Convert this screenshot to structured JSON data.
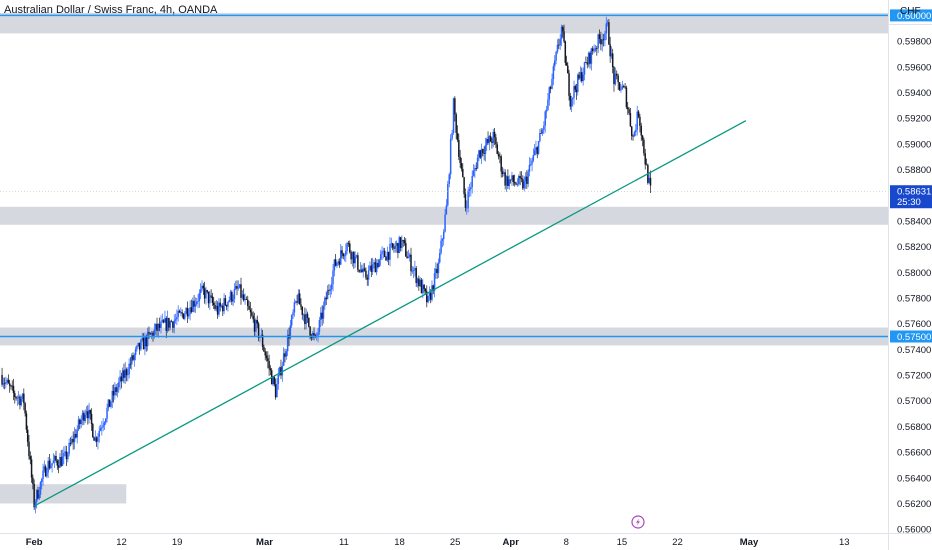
{
  "header": {
    "title": "Australian Dollar / Swiss Franc, 4h, OANDA",
    "currency": "CHF"
  },
  "chart_data": {
    "type": "candlestick",
    "symbol": "AUDCHF",
    "timeframe": "4h",
    "ylim": [
      0.5597,
      0.6012
    ],
    "y_ticks": [
      "0.59800",
      "0.59600",
      "0.59400",
      "0.59200",
      "0.59000",
      "0.58800",
      "0.58400",
      "0.58200",
      "0.58000",
      "0.57800",
      "0.57600",
      "0.57400",
      "0.57200",
      "0.57000",
      "0.56800",
      "0.56600",
      "0.56400",
      "0.56200",
      "0.56000"
    ],
    "x_ticks": [
      {
        "label": "Feb",
        "bold": true,
        "day": 0
      },
      {
        "label": "12",
        "bold": false,
        "day": 11
      },
      {
        "label": "19",
        "bold": false,
        "day": 18
      },
      {
        "label": "Mar",
        "bold": true,
        "day": 29
      },
      {
        "label": "11",
        "bold": false,
        "day": 39
      },
      {
        "label": "18",
        "bold": false,
        "day": 46
      },
      {
        "label": "25",
        "bold": false,
        "day": 53
      },
      {
        "label": "Apr",
        "bold": true,
        "day": 60
      },
      {
        "label": "8",
        "bold": false,
        "day": 67
      },
      {
        "label": "15",
        "bold": false,
        "day": 74
      },
      {
        "label": "22",
        "bold": false,
        "day": 81
      },
      {
        "label": "May",
        "bold": true,
        "day": 90
      },
      {
        "label": "13",
        "bold": false,
        "day": 102
      }
    ],
    "x_domain_days": [
      -4.3,
      107.5
    ],
    "key_levels": [
      {
        "price": 0.6,
        "label": "0.60000",
        "zone": [
          0.5986,
          0.6002
        ]
      },
      {
        "price": 0.575,
        "label": "0.57500",
        "zone": [
          0.5743,
          0.5757
        ]
      }
    ],
    "zones": [
      {
        "y1": 0.5837,
        "y2": 0.5851,
        "extend": true
      },
      {
        "y1": 0.562,
        "y2": 0.5635,
        "x_end_day": 11.6
      }
    ],
    "trendline": {
      "p1": [
        0.0,
        0.5618
      ],
      "p2": [
        89.6,
        0.5918
      ]
    },
    "current_price": {
      "label": "0.58631",
      "countdown": "25:30",
      "value": 0.58631
    },
    "anchors": [
      [
        -4.2,
        0.572
      ],
      [
        -2.6,
        0.5705
      ],
      [
        -1.3,
        0.57
      ],
      [
        0.0,
        0.562
      ],
      [
        1.6,
        0.565
      ],
      [
        3.9,
        0.5655
      ],
      [
        6.6,
        0.5695
      ],
      [
        7.7,
        0.567
      ],
      [
        10.0,
        0.5705
      ],
      [
        13.1,
        0.574
      ],
      [
        15.3,
        0.5755
      ],
      [
        18.3,
        0.5765
      ],
      [
        21.3,
        0.5785
      ],
      [
        23.1,
        0.577
      ],
      [
        25.7,
        0.5787
      ],
      [
        28.6,
        0.5748
      ],
      [
        30.4,
        0.5707
      ],
      [
        33.1,
        0.578
      ],
      [
        35.4,
        0.5746
      ],
      [
        37.8,
        0.5805
      ],
      [
        39.4,
        0.5822
      ],
      [
        41.6,
        0.5796
      ],
      [
        43.8,
        0.5812
      ],
      [
        46.3,
        0.5823
      ],
      [
        48.1,
        0.5797
      ],
      [
        49.6,
        0.5776
      ],
      [
        50.9,
        0.5805
      ],
      [
        51.9,
        0.585
      ],
      [
        52.8,
        0.593
      ],
      [
        54.3,
        0.5852
      ],
      [
        56.0,
        0.5893
      ],
      [
        57.8,
        0.5905
      ],
      [
        59.3,
        0.5872
      ],
      [
        61.7,
        0.5868
      ],
      [
        64.0,
        0.591
      ],
      [
        66.4,
        0.599
      ],
      [
        67.5,
        0.5935
      ],
      [
        68.6,
        0.595
      ],
      [
        70.5,
        0.5975
      ],
      [
        72.2,
        0.599
      ],
      [
        73.0,
        0.595
      ],
      [
        74.4,
        0.594
      ],
      [
        75.4,
        0.5905
      ],
      [
        76.1,
        0.5925
      ],
      [
        77.1,
        0.588
      ],
      [
        77.6,
        0.5863
      ]
    ]
  },
  "footer": {
    "lightning_icon": "lightning-bolt-icon"
  },
  "colors": {
    "up_candle": "#2962ff",
    "down_candle": "#131722",
    "level_line": "#2196f3",
    "zone_fill": "#d1d4dc",
    "trendline": "#089981",
    "price_tag": "#1848cc",
    "lightning": "#ab47bc"
  }
}
